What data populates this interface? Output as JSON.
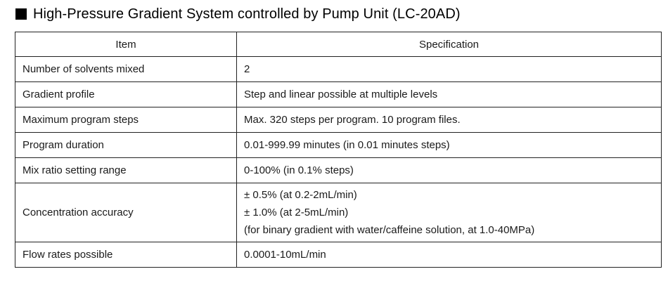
{
  "heading": {
    "bullet_icon": "filled-square",
    "title": "High-Pressure Gradient System controlled by Pump Unit (LC-20AD)"
  },
  "table": {
    "headers": [
      "Item",
      "Specification"
    ],
    "rows": [
      {
        "item": "Number of solvents mixed",
        "spec": [
          "2"
        ]
      },
      {
        "item": "Gradient profile",
        "spec": [
          "Step and linear possible at multiple levels"
        ]
      },
      {
        "item": "Maximum program steps",
        "spec": [
          "Max. 320 steps per program. 10 program files."
        ]
      },
      {
        "item": "Program duration",
        "spec": [
          "0.01-999.99 minutes (in 0.01 minutes steps)"
        ]
      },
      {
        "item": "Mix ratio setting range",
        "spec": [
          "0-100% (in 0.1% steps)"
        ]
      },
      {
        "item": "Concentration accuracy",
        "spec": [
          "± 0.5% (at 0.2-2mL/min)",
          "± 1.0% (at 2-5mL/min)",
          "(for binary gradient with water/caffeine solution, at 1.0-40MPa)"
        ]
      },
      {
        "item": "Flow rates possible",
        "spec": [
          "0.0001-10mL/min"
        ]
      }
    ]
  }
}
